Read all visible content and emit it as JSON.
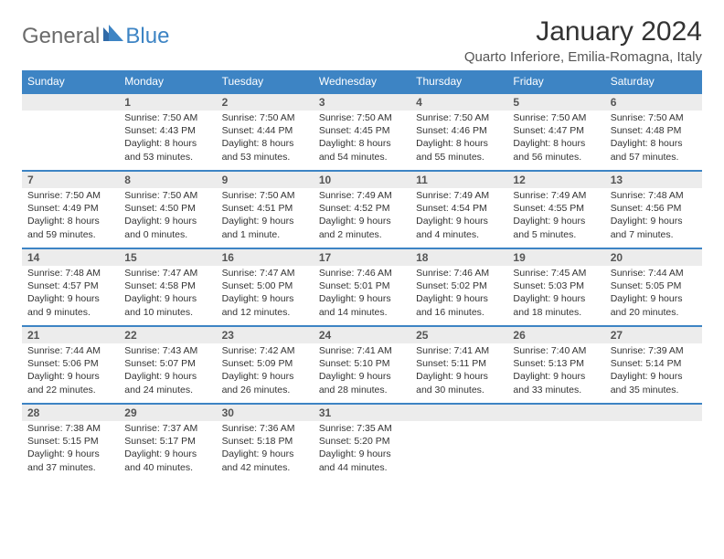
{
  "logo": {
    "general": "General",
    "blue": "Blue"
  },
  "title": "January 2024",
  "location": "Quarto Inferiore, Emilia-Romagna, Italy",
  "colors": {
    "accent": "#3d84c4",
    "band": "#ececec",
    "text": "#333333",
    "muted": "#555555"
  },
  "dayheads": [
    "Sunday",
    "Monday",
    "Tuesday",
    "Wednesday",
    "Thursday",
    "Friday",
    "Saturday"
  ],
  "weeks": [
    [
      {
        "num": "",
        "sunrise": "",
        "sunset": "",
        "day1": "",
        "day2": ""
      },
      {
        "num": "1",
        "sunrise": "Sunrise: 7:50 AM",
        "sunset": "Sunset: 4:43 PM",
        "day1": "Daylight: 8 hours",
        "day2": "and 53 minutes."
      },
      {
        "num": "2",
        "sunrise": "Sunrise: 7:50 AM",
        "sunset": "Sunset: 4:44 PM",
        "day1": "Daylight: 8 hours",
        "day2": "and 53 minutes."
      },
      {
        "num": "3",
        "sunrise": "Sunrise: 7:50 AM",
        "sunset": "Sunset: 4:45 PM",
        "day1": "Daylight: 8 hours",
        "day2": "and 54 minutes."
      },
      {
        "num": "4",
        "sunrise": "Sunrise: 7:50 AM",
        "sunset": "Sunset: 4:46 PM",
        "day1": "Daylight: 8 hours",
        "day2": "and 55 minutes."
      },
      {
        "num": "5",
        "sunrise": "Sunrise: 7:50 AM",
        "sunset": "Sunset: 4:47 PM",
        "day1": "Daylight: 8 hours",
        "day2": "and 56 minutes."
      },
      {
        "num": "6",
        "sunrise": "Sunrise: 7:50 AM",
        "sunset": "Sunset: 4:48 PM",
        "day1": "Daylight: 8 hours",
        "day2": "and 57 minutes."
      }
    ],
    [
      {
        "num": "7",
        "sunrise": "Sunrise: 7:50 AM",
        "sunset": "Sunset: 4:49 PM",
        "day1": "Daylight: 8 hours",
        "day2": "and 59 minutes."
      },
      {
        "num": "8",
        "sunrise": "Sunrise: 7:50 AM",
        "sunset": "Sunset: 4:50 PM",
        "day1": "Daylight: 9 hours",
        "day2": "and 0 minutes."
      },
      {
        "num": "9",
        "sunrise": "Sunrise: 7:50 AM",
        "sunset": "Sunset: 4:51 PM",
        "day1": "Daylight: 9 hours",
        "day2": "and 1 minute."
      },
      {
        "num": "10",
        "sunrise": "Sunrise: 7:49 AM",
        "sunset": "Sunset: 4:52 PM",
        "day1": "Daylight: 9 hours",
        "day2": "and 2 minutes."
      },
      {
        "num": "11",
        "sunrise": "Sunrise: 7:49 AM",
        "sunset": "Sunset: 4:54 PM",
        "day1": "Daylight: 9 hours",
        "day2": "and 4 minutes."
      },
      {
        "num": "12",
        "sunrise": "Sunrise: 7:49 AM",
        "sunset": "Sunset: 4:55 PM",
        "day1": "Daylight: 9 hours",
        "day2": "and 5 minutes."
      },
      {
        "num": "13",
        "sunrise": "Sunrise: 7:48 AM",
        "sunset": "Sunset: 4:56 PM",
        "day1": "Daylight: 9 hours",
        "day2": "and 7 minutes."
      }
    ],
    [
      {
        "num": "14",
        "sunrise": "Sunrise: 7:48 AM",
        "sunset": "Sunset: 4:57 PM",
        "day1": "Daylight: 9 hours",
        "day2": "and 9 minutes."
      },
      {
        "num": "15",
        "sunrise": "Sunrise: 7:47 AM",
        "sunset": "Sunset: 4:58 PM",
        "day1": "Daylight: 9 hours",
        "day2": "and 10 minutes."
      },
      {
        "num": "16",
        "sunrise": "Sunrise: 7:47 AM",
        "sunset": "Sunset: 5:00 PM",
        "day1": "Daylight: 9 hours",
        "day2": "and 12 minutes."
      },
      {
        "num": "17",
        "sunrise": "Sunrise: 7:46 AM",
        "sunset": "Sunset: 5:01 PM",
        "day1": "Daylight: 9 hours",
        "day2": "and 14 minutes."
      },
      {
        "num": "18",
        "sunrise": "Sunrise: 7:46 AM",
        "sunset": "Sunset: 5:02 PM",
        "day1": "Daylight: 9 hours",
        "day2": "and 16 minutes."
      },
      {
        "num": "19",
        "sunrise": "Sunrise: 7:45 AM",
        "sunset": "Sunset: 5:03 PM",
        "day1": "Daylight: 9 hours",
        "day2": "and 18 minutes."
      },
      {
        "num": "20",
        "sunrise": "Sunrise: 7:44 AM",
        "sunset": "Sunset: 5:05 PM",
        "day1": "Daylight: 9 hours",
        "day2": "and 20 minutes."
      }
    ],
    [
      {
        "num": "21",
        "sunrise": "Sunrise: 7:44 AM",
        "sunset": "Sunset: 5:06 PM",
        "day1": "Daylight: 9 hours",
        "day2": "and 22 minutes."
      },
      {
        "num": "22",
        "sunrise": "Sunrise: 7:43 AM",
        "sunset": "Sunset: 5:07 PM",
        "day1": "Daylight: 9 hours",
        "day2": "and 24 minutes."
      },
      {
        "num": "23",
        "sunrise": "Sunrise: 7:42 AM",
        "sunset": "Sunset: 5:09 PM",
        "day1": "Daylight: 9 hours",
        "day2": "and 26 minutes."
      },
      {
        "num": "24",
        "sunrise": "Sunrise: 7:41 AM",
        "sunset": "Sunset: 5:10 PM",
        "day1": "Daylight: 9 hours",
        "day2": "and 28 minutes."
      },
      {
        "num": "25",
        "sunrise": "Sunrise: 7:41 AM",
        "sunset": "Sunset: 5:11 PM",
        "day1": "Daylight: 9 hours",
        "day2": "and 30 minutes."
      },
      {
        "num": "26",
        "sunrise": "Sunrise: 7:40 AM",
        "sunset": "Sunset: 5:13 PM",
        "day1": "Daylight: 9 hours",
        "day2": "and 33 minutes."
      },
      {
        "num": "27",
        "sunrise": "Sunrise: 7:39 AM",
        "sunset": "Sunset: 5:14 PM",
        "day1": "Daylight: 9 hours",
        "day2": "and 35 minutes."
      }
    ],
    [
      {
        "num": "28",
        "sunrise": "Sunrise: 7:38 AM",
        "sunset": "Sunset: 5:15 PM",
        "day1": "Daylight: 9 hours",
        "day2": "and 37 minutes."
      },
      {
        "num": "29",
        "sunrise": "Sunrise: 7:37 AM",
        "sunset": "Sunset: 5:17 PM",
        "day1": "Daylight: 9 hours",
        "day2": "and 40 minutes."
      },
      {
        "num": "30",
        "sunrise": "Sunrise: 7:36 AM",
        "sunset": "Sunset: 5:18 PM",
        "day1": "Daylight: 9 hours",
        "day2": "and 42 minutes."
      },
      {
        "num": "31",
        "sunrise": "Sunrise: 7:35 AM",
        "sunset": "Sunset: 5:20 PM",
        "day1": "Daylight: 9 hours",
        "day2": "and 44 minutes."
      },
      {
        "num": "",
        "sunrise": "",
        "sunset": "",
        "day1": "",
        "day2": ""
      },
      {
        "num": "",
        "sunrise": "",
        "sunset": "",
        "day1": "",
        "day2": ""
      },
      {
        "num": "",
        "sunrise": "",
        "sunset": "",
        "day1": "",
        "day2": ""
      }
    ]
  ]
}
